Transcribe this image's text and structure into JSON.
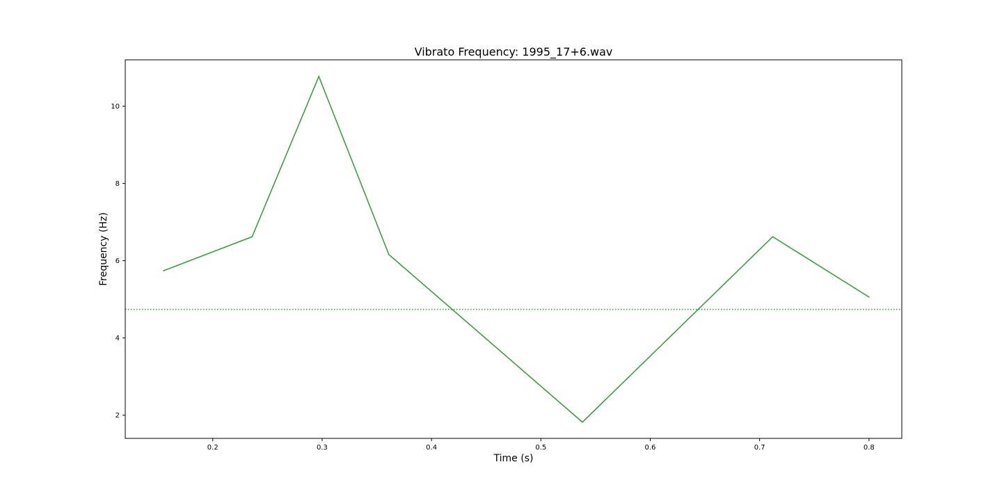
{
  "chart_data": {
    "type": "line",
    "title": "Vibrato Frequency: 1995_17+6.wav",
    "xlabel": "Time (s)",
    "ylabel": "Frequency (Hz)",
    "xlim": [
      0.12,
      0.83
    ],
    "ylim": [
      1.4,
      11.2
    ],
    "xticks": [
      0.2,
      0.3,
      0.4,
      0.5,
      0.6,
      0.7,
      0.8
    ],
    "xtick_labels": [
      "0.2",
      "0.3",
      "0.4",
      "0.5",
      "0.6",
      "0.7",
      "0.8"
    ],
    "yticks": [
      2,
      4,
      6,
      8,
      10
    ],
    "ytick_labels": [
      "2",
      "4",
      "6",
      "8",
      "10"
    ],
    "grid": false,
    "legend": "none",
    "series": [
      {
        "style": "solid",
        "color": "#2ca02c",
        "x": [
          0.155,
          0.236,
          0.297,
          0.361,
          0.538,
          0.712,
          0.8
        ],
        "y": [
          5.74,
          6.62,
          10.77,
          6.16,
          1.82,
          6.62,
          5.06
        ]
      }
    ],
    "reference_lines": [
      {
        "orientation": "horizontal",
        "style": "dotted",
        "color": "#2ca02c",
        "y": 4.74
      }
    ]
  }
}
